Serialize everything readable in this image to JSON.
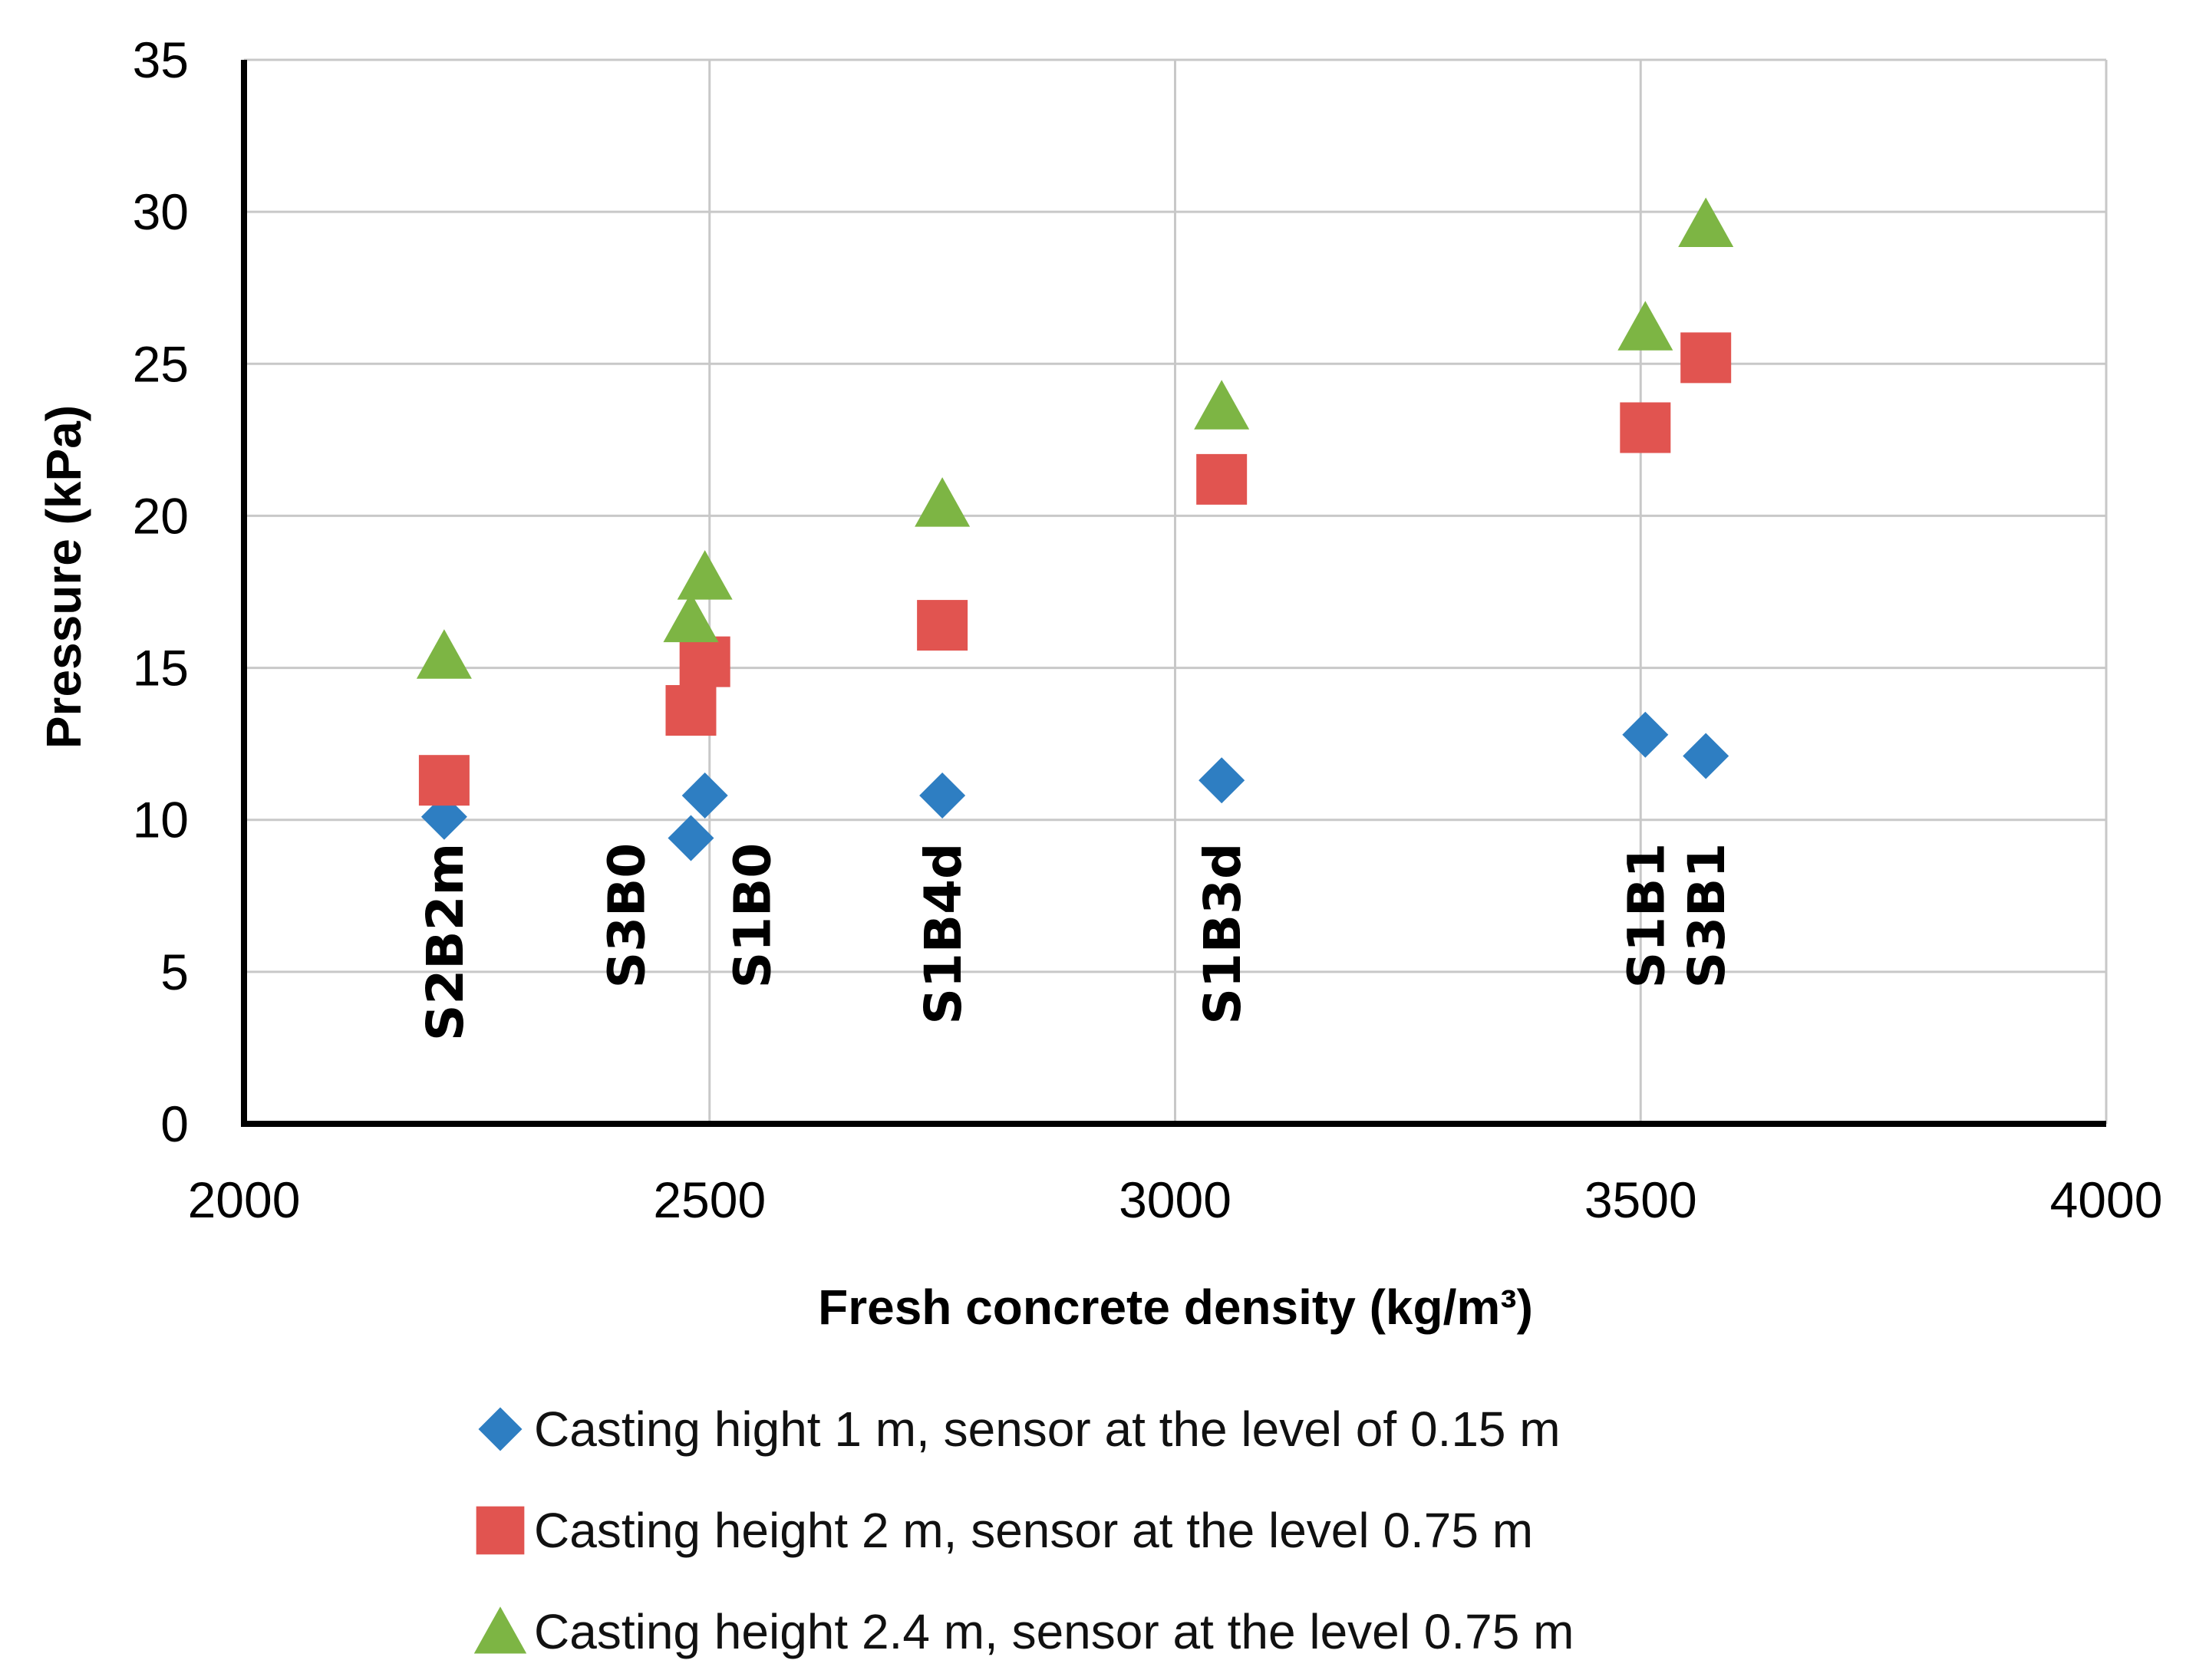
{
  "chart_data": {
    "type": "scatter",
    "title": "",
    "xlabel": "Fresh concrete density (kg/m³)",
    "ylabel": "Pressure (kPa)",
    "xlim": [
      2000,
      4000
    ],
    "ylim": [
      0,
      35
    ],
    "x_ticks": [
      2000,
      2500,
      3000,
      3500,
      4000
    ],
    "y_ticks": [
      0,
      5,
      10,
      15,
      20,
      25,
      30,
      35
    ],
    "grid": true,
    "legend_position": "bottom",
    "series": [
      {
        "name": "Casting hight 1 m, sensor at the level of 0.15 m",
        "marker": "diamond",
        "color": "#2E7EC2",
        "points": [
          {
            "x": 2215,
            "y": 10.1
          },
          {
            "x": 2480,
            "y": 9.4
          },
          {
            "x": 2495,
            "y": 10.8
          },
          {
            "x": 2750,
            "y": 10.8
          },
          {
            "x": 3050,
            "y": 11.3
          },
          {
            "x": 3505,
            "y": 12.8
          },
          {
            "x": 3570,
            "y": 12.1
          }
        ]
      },
      {
        "name": "Casting height 2 m, sensor at the level 0.75 m",
        "marker": "square",
        "color": "#E15450",
        "points": [
          {
            "x": 2215,
            "y": 11.3
          },
          {
            "x": 2480,
            "y": 13.6
          },
          {
            "x": 2495,
            "y": 15.2
          },
          {
            "x": 2750,
            "y": 16.4
          },
          {
            "x": 3050,
            "y": 21.2
          },
          {
            "x": 3505,
            "y": 22.9
          },
          {
            "x": 3570,
            "y": 25.2
          }
        ]
      },
      {
        "name": "Casting height 2.4 m, sensor at the level 0.75 m",
        "marker": "triangle",
        "color": "#7DB544",
        "points": [
          {
            "x": 2215,
            "y": 15.4
          },
          {
            "x": 2480,
            "y": 16.6
          },
          {
            "x": 2495,
            "y": 18.0
          },
          {
            "x": 2750,
            "y": 20.4
          },
          {
            "x": 3050,
            "y": 23.6
          },
          {
            "x": 3505,
            "y": 26.2
          },
          {
            "x": 3570,
            "y": 29.6
          }
        ]
      }
    ],
    "annotations": [
      {
        "text": "S2B2m",
        "x": 2215
      },
      {
        "text": "S3B0",
        "x": 2410
      },
      {
        "text": "S1B0",
        "x": 2545
      },
      {
        "text": "S1B4d",
        "x": 2750
      },
      {
        "text": "S1B3d",
        "x": 3050
      },
      {
        "text": "S1B1",
        "x": 3505
      },
      {
        "text": "S3B1",
        "x": 3570
      }
    ]
  }
}
